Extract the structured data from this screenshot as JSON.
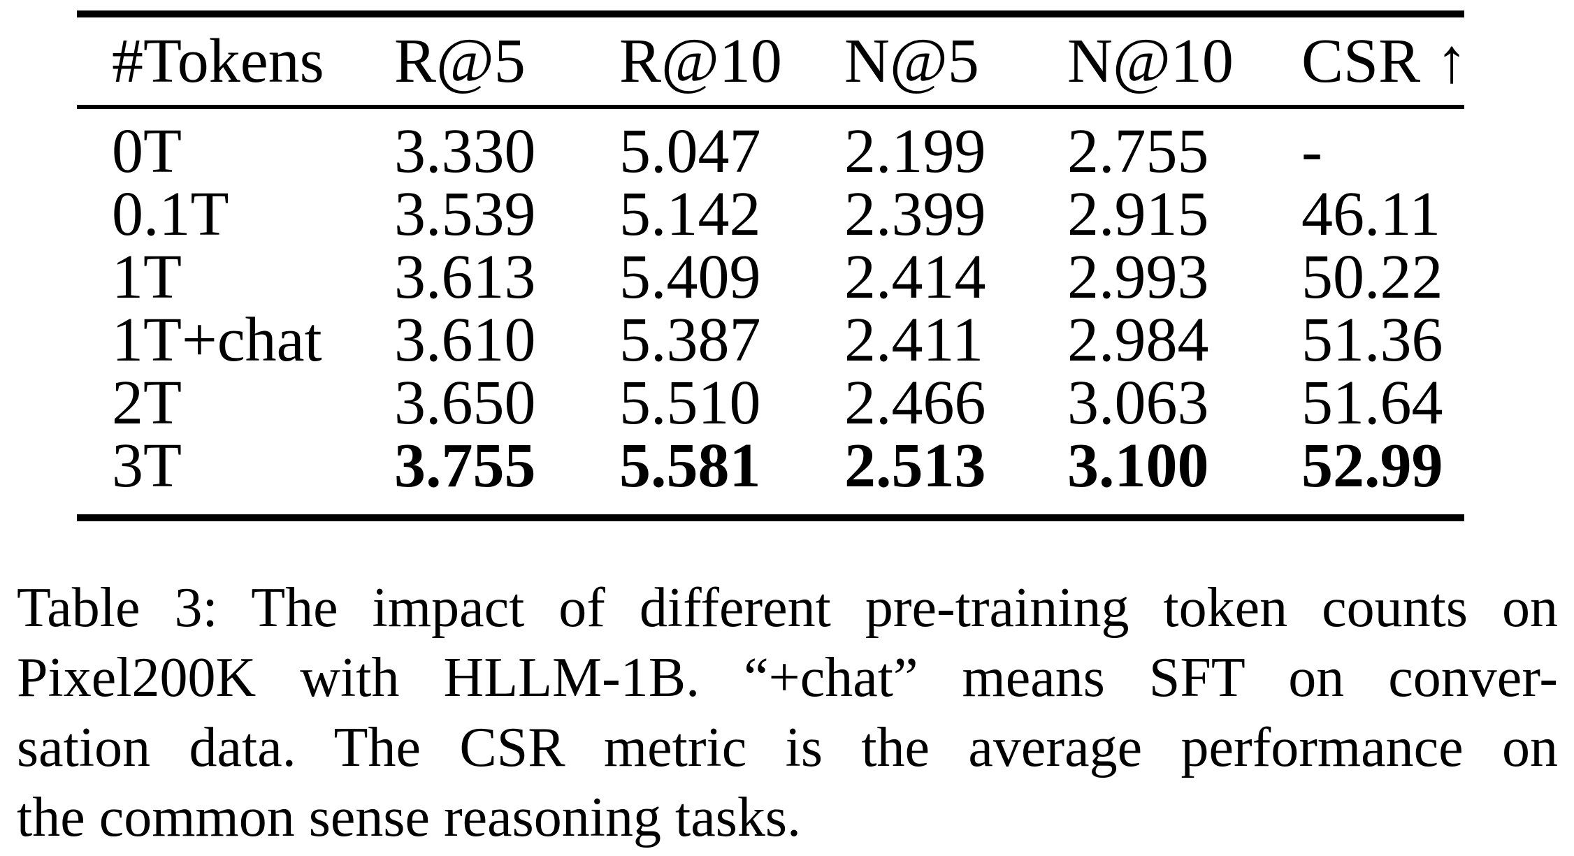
{
  "table": {
    "columns": [
      "#Tokens",
      "R@5",
      "R@10",
      "N@5",
      "N@10",
      "CSR ↑"
    ],
    "rows": [
      {
        "tokens": "0T",
        "r5": "3.330",
        "r10": "5.047",
        "n5": "2.199",
        "n10": "2.755",
        "csr": "-"
      },
      {
        "tokens": "0.1T",
        "r5": "3.539",
        "r10": "5.142",
        "n5": "2.399",
        "n10": "2.915",
        "csr": "46.11"
      },
      {
        "tokens": "1T",
        "r5": "3.613",
        "r10": "5.409",
        "n5": "2.414",
        "n10": "2.993",
        "csr": "50.22"
      },
      {
        "tokens": "1T+chat",
        "r5": "3.610",
        "r10": "5.387",
        "n5": "2.411",
        "n10": "2.984",
        "csr": "51.36"
      },
      {
        "tokens": "2T",
        "r5": "3.650",
        "r10": "5.510",
        "n5": "2.466",
        "n10": "3.063",
        "csr": "51.64"
      },
      {
        "tokens": "3T",
        "r5": "3.755",
        "r10": "5.581",
        "n5": "2.513",
        "n10": "3.100",
        "csr": "52.99"
      }
    ],
    "best_row_index": 5
  },
  "caption": {
    "lines": [
      "Table 3: The impact of different pre-training token counts on",
      "Pixel200K with HLLM-1B. “+chat” means SFT on conver-",
      "sation data. The CSR metric is the average performance on",
      "the common sense reasoning tasks."
    ]
  },
  "colors": {
    "text": "#000000",
    "background": "#ffffff",
    "rule": "#000000"
  }
}
